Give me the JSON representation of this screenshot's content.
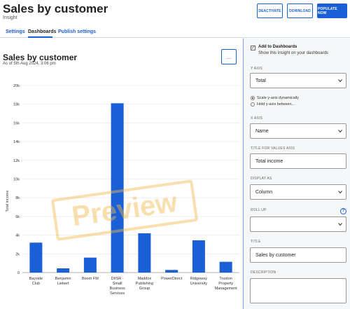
{
  "header": {
    "title": "Sales by customer",
    "subtitle": "Insight",
    "buttons": {
      "deactivate": "DEACTIVATE",
      "download": "DOWNLOAD",
      "populate": "POPULATE NOW"
    }
  },
  "tabs": [
    {
      "label": "Settings",
      "active": false
    },
    {
      "label": "Dashboards",
      "active": true
    },
    {
      "label": "Publish settings",
      "active": false
    }
  ],
  "chart_panel": {
    "title": "Sales by customer",
    "as_of": "As of 5th Aug 2024, 3:06 pm",
    "more_label": "..."
  },
  "chart_data": {
    "type": "bar",
    "ylabel": "Total income",
    "ylim": [
      0,
      20000
    ],
    "yticks": [
      0,
      2000,
      4000,
      6000,
      8000,
      10000,
      12000,
      14000,
      16000,
      18000,
      20000
    ],
    "ytick_labels": [
      "0",
      "2k",
      "4k",
      "6k",
      "8k",
      "10k",
      "12k",
      "14k",
      "16k",
      "18k",
      "20k"
    ],
    "categories": [
      [
        "Bayside",
        "Club"
      ],
      [
        "Benjamin",
        "Liebert"
      ],
      [
        "Boom FM"
      ],
      [
        "DIISR -",
        "Small",
        "Business",
        "Services"
      ],
      [
        "Maddox",
        "Publishing",
        "Group"
      ],
      [
        "PowerDirect"
      ],
      [
        "Ridgeway",
        "University"
      ],
      [
        "Truxton",
        "Property",
        "Management"
      ]
    ],
    "values": [
      3200,
      450,
      1600,
      18100,
      4200,
      280,
      3450,
      1150
    ],
    "bar_color": "#1a5fd6",
    "watermark": "Preview",
    "grid": true
  },
  "settings": {
    "add_to_dashboards": {
      "checked": true,
      "label": "Add to Dashboards",
      "sub": "Show this Insight on your dashboards"
    },
    "y_axis": {
      "label": "Y AXIS",
      "value": "Total"
    },
    "scale_options": [
      {
        "label": "Scale y-axis dynamically",
        "selected": true
      },
      {
        "label": "Hold y-axis between...",
        "selected": false
      }
    ],
    "x_axis": {
      "label": "X AXIS",
      "value": "Name"
    },
    "title_for_values": {
      "label": "TITLE FOR VALUES AXIS",
      "value": "Total income"
    },
    "display_as": {
      "label": "DISPLAY AS",
      "value": "Column"
    },
    "roll_up": {
      "label": "ROLL UP",
      "value": ""
    },
    "title": {
      "label": "TITLE",
      "value": "Sales by customer"
    },
    "description": {
      "label": "DESCRIPTION",
      "value": ""
    }
  },
  "colors": {
    "accent": "#1a5fd6",
    "watermark": "#f1b84b"
  }
}
